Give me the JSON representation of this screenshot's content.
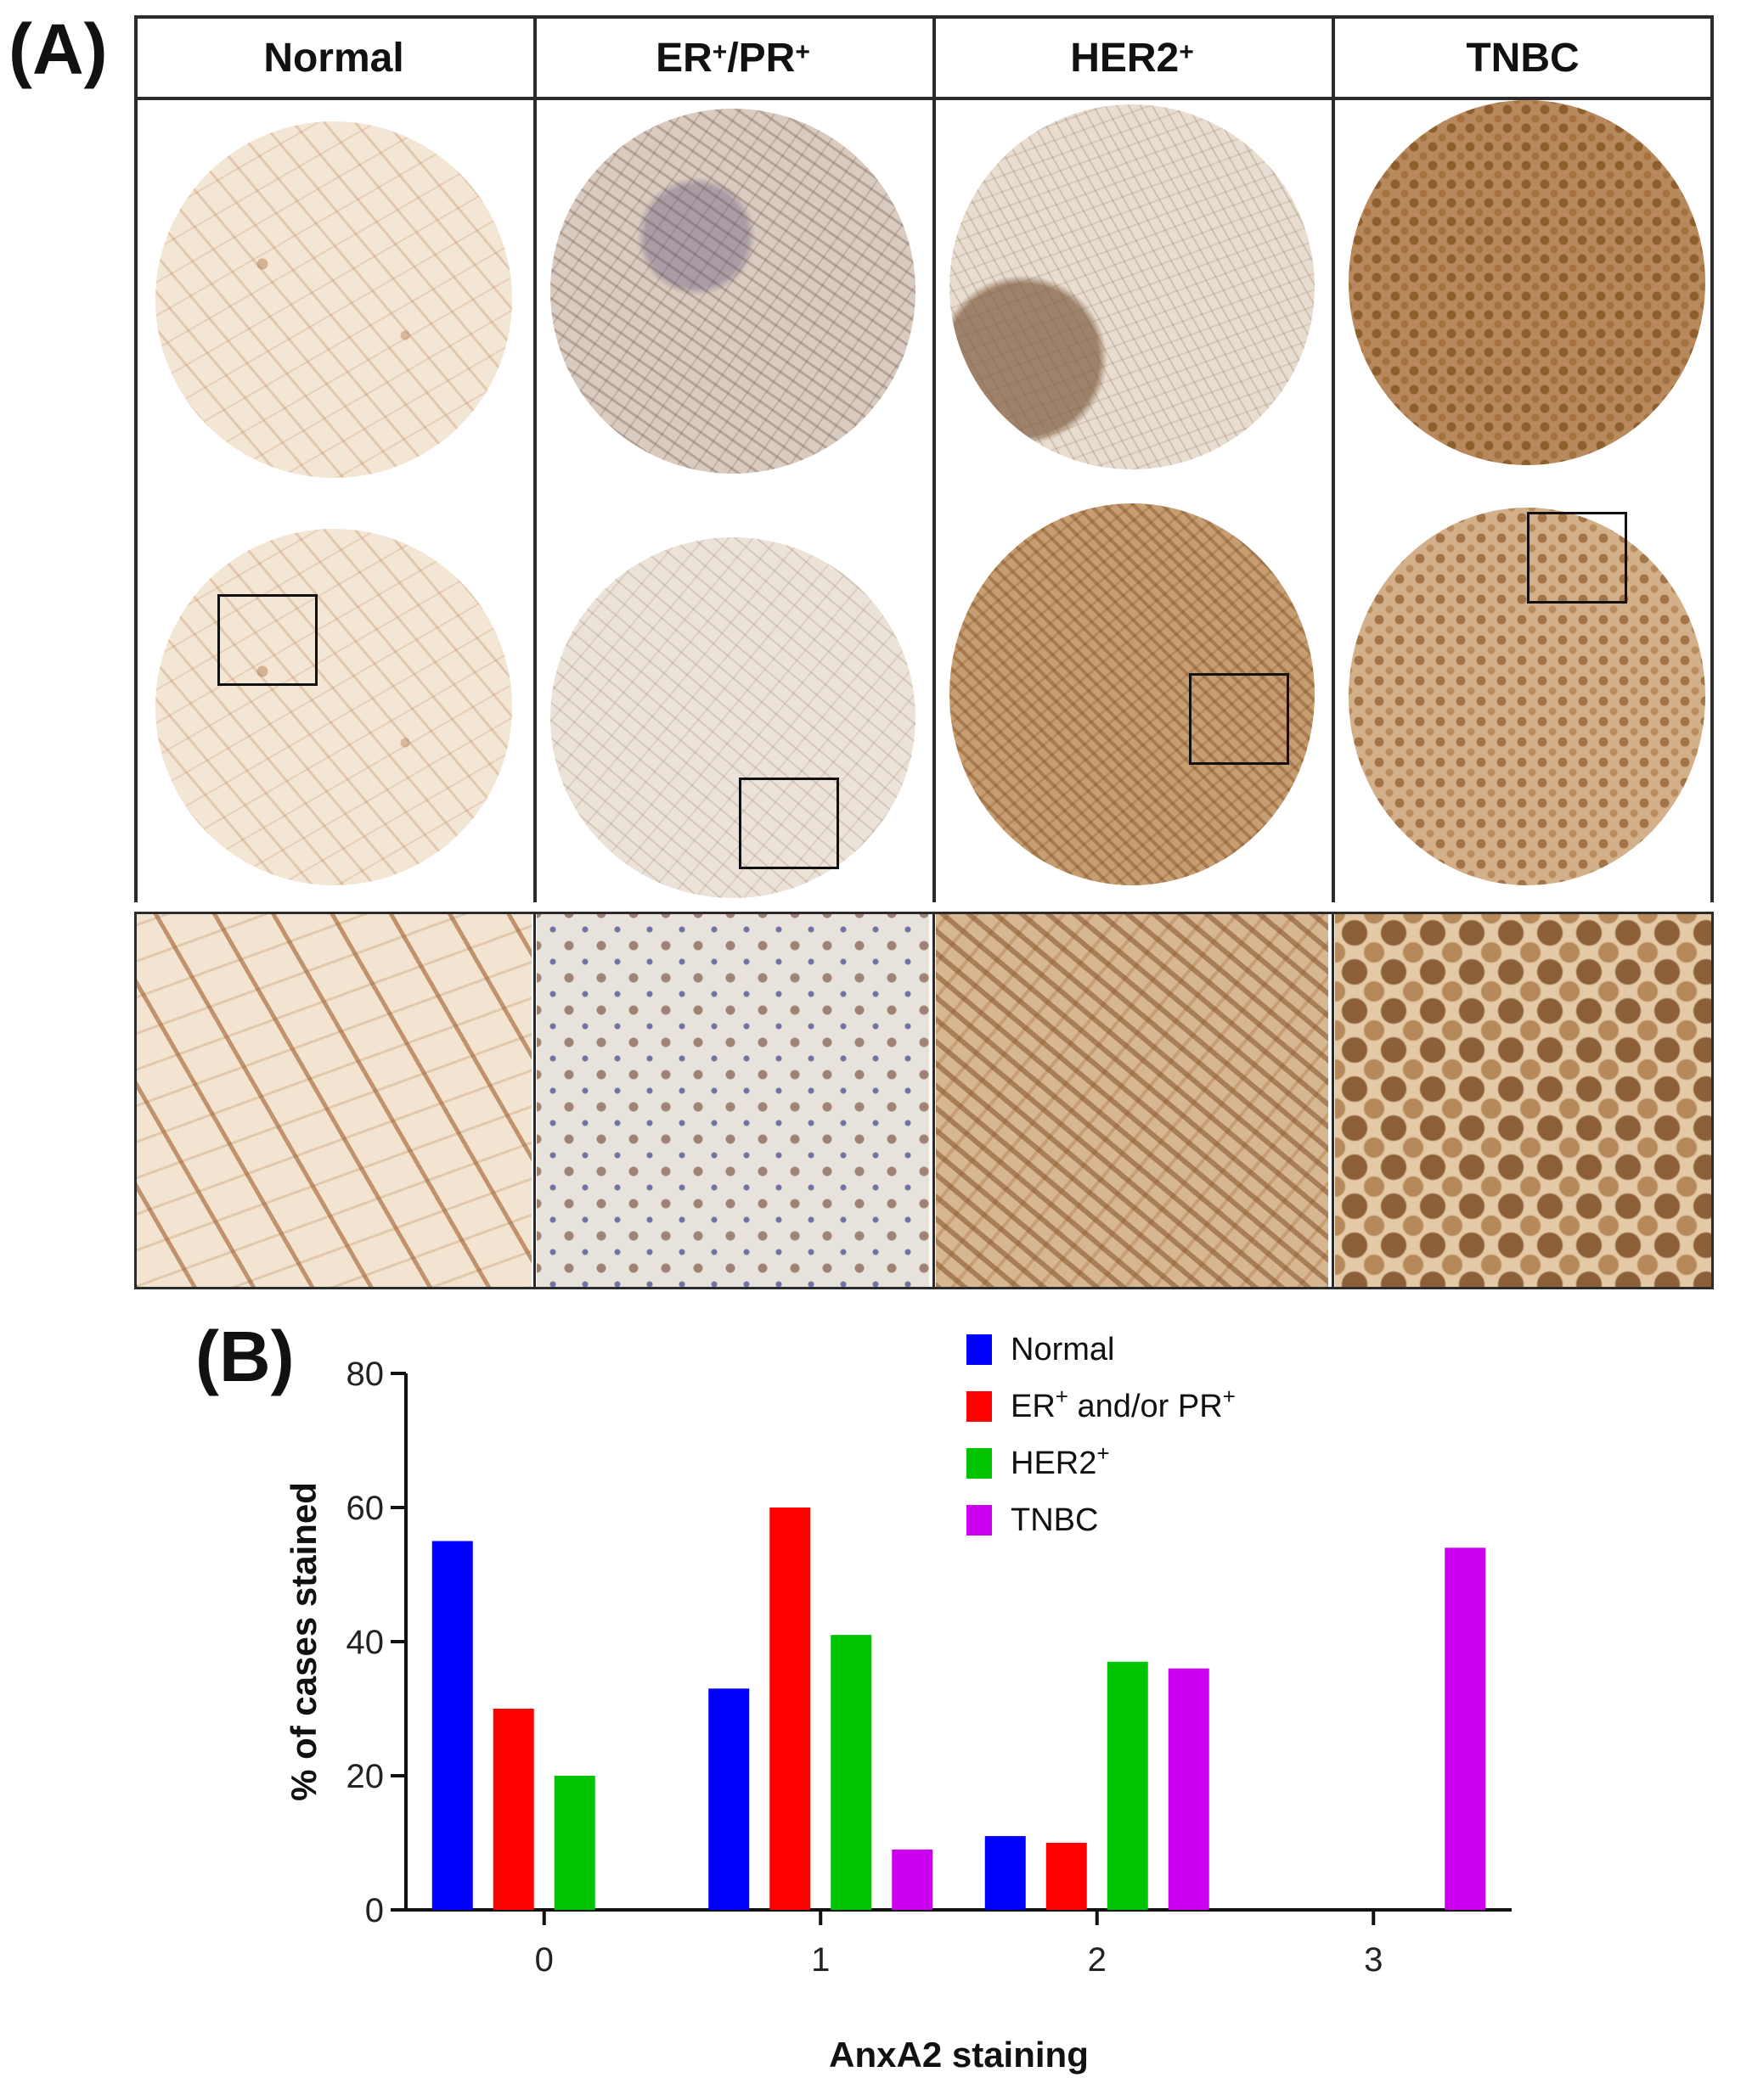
{
  "panel_a": {
    "label": "(A)",
    "columns": [
      {
        "name": "Normal",
        "sup1": "",
        "mid": "",
        "sup2": ""
      },
      {
        "name": "ER",
        "sup1": "+",
        "mid": "/PR",
        "sup2": "+"
      },
      {
        "name": "HER2",
        "sup1": "+",
        "mid": "",
        "sup2": ""
      },
      {
        "name": "TNBC",
        "sup1": "",
        "mid": "",
        "sup2": ""
      }
    ]
  },
  "panel_b": {
    "label": "(B)"
  },
  "colors": {
    "normal": "#0000ff",
    "er_pr": "#ff0000",
    "her2": "#00c400",
    "tnbc": "#cc00ee"
  },
  "chart_data": {
    "type": "bar",
    "categories": [
      "0",
      "1",
      "2",
      "3"
    ],
    "xlabel": "AnxA2 staining",
    "ylabel": "% of cases stained",
    "ylim": [
      0,
      80
    ],
    "yticks": [
      0,
      20,
      40,
      60,
      80
    ],
    "legend_position": "top-right",
    "series": [
      {
        "name": "Normal",
        "name_sup": "",
        "name_mid": "",
        "name_sup2": "",
        "color": "#0000ff",
        "values": [
          55,
          33,
          11,
          0
        ]
      },
      {
        "name": "ER",
        "name_sup": "+",
        "name_mid": " and/or PR",
        "name_sup2": "+",
        "color": "#ff0000",
        "values": [
          30,
          60,
          10,
          0
        ]
      },
      {
        "name": "HER2",
        "name_sup": "+",
        "name_mid": "",
        "name_sup2": "",
        "color": "#00c400",
        "values": [
          20,
          41,
          37,
          0
        ]
      },
      {
        "name": "TNBC",
        "name_sup": "",
        "name_mid": "",
        "name_sup2": "",
        "color": "#cc00ee",
        "values": [
          0,
          9,
          36,
          54
        ]
      }
    ]
  }
}
